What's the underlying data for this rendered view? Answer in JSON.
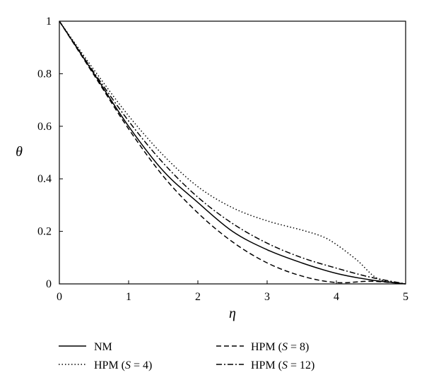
{
  "chart_data": {
    "type": "line",
    "xlabel": "η",
    "ylabel": "θ",
    "xlim": [
      0,
      5
    ],
    "ylim": [
      0,
      1
    ],
    "x_ticks": [
      "0",
      "1",
      "2",
      "3",
      "4",
      "5"
    ],
    "y_ticks": [
      "0",
      "0.2",
      "0.4",
      "0.6",
      "0.8",
      "1"
    ],
    "grid": false,
    "legend_position": "bottom",
    "series": [
      {
        "name": "NM",
        "style": "solid",
        "x": [
          0,
          0.5,
          1,
          1.5,
          2,
          2.5,
          3,
          3.5,
          4,
          4.5,
          5
        ],
        "y": [
          1,
          0.8,
          0.6,
          0.43,
          0.31,
          0.2,
          0.13,
          0.08,
          0.04,
          0.015,
          0
        ]
      },
      {
        "name": "HPM (S = 4)",
        "style": "dotted",
        "x": [
          0,
          0.5,
          1,
          1.5,
          2,
          2.5,
          3,
          3.5,
          3.8,
          4,
          4.3,
          4.6,
          5
        ],
        "y": [
          1,
          0.815,
          0.64,
          0.49,
          0.37,
          0.29,
          0.24,
          0.205,
          0.18,
          0.15,
          0.09,
          0.02,
          0
        ]
      },
      {
        "name": "HPM (S = 8)",
        "style": "dashed",
        "x": [
          0,
          0.5,
          1,
          1.5,
          2,
          2.5,
          3,
          3.5,
          4,
          4.5,
          5
        ],
        "y": [
          1,
          0.795,
          0.59,
          0.41,
          0.27,
          0.16,
          0.08,
          0.03,
          0.005,
          0.01,
          0
        ]
      },
      {
        "name": "HPM (S = 12)",
        "style": "dashdot",
        "x": [
          0,
          0.5,
          1,
          1.5,
          2,
          2.5,
          3,
          3.5,
          4,
          4.5,
          5
        ],
        "y": [
          1,
          0.805,
          0.62,
          0.46,
          0.33,
          0.23,
          0.155,
          0.1,
          0.06,
          0.025,
          0
        ]
      }
    ]
  },
  "legend": [
    {
      "prefix": "NM",
      "symbol": "",
      "suffix": ""
    },
    {
      "prefix": "HPM (",
      "symbol": "S",
      "suffix": " = 8)"
    },
    {
      "prefix": "HPM (",
      "symbol": "S",
      "suffix": " = 4)"
    },
    {
      "prefix": "HPM (",
      "symbol": "S",
      "suffix": " = 12)"
    }
  ]
}
